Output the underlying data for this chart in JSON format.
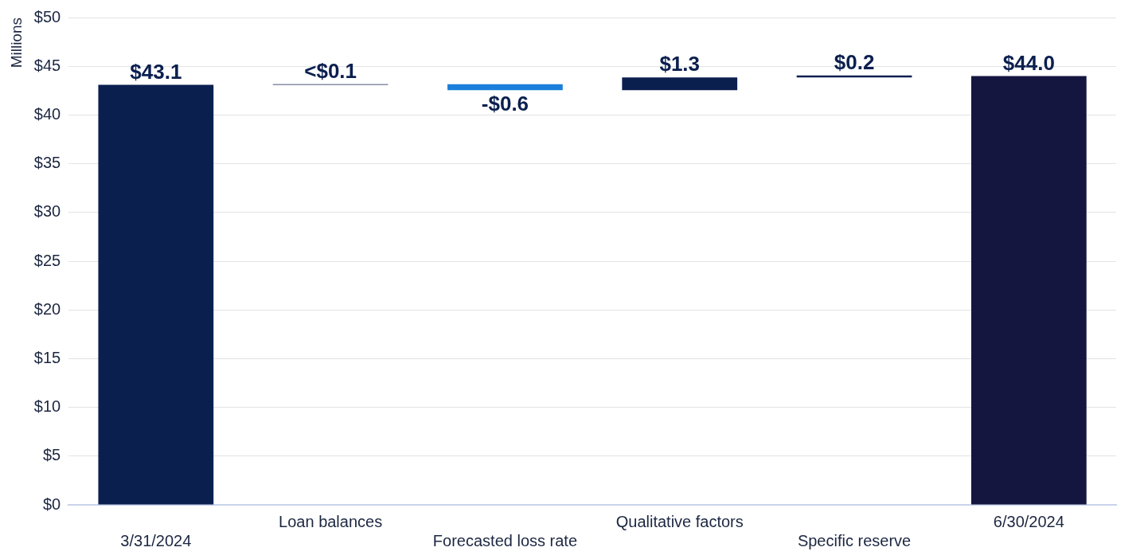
{
  "chart_data": {
    "type": "bar",
    "ylabel": "Millions",
    "categories": [
      "3/31/2024",
      "Loan balances",
      "Forecasted loss rate",
      "Qualitative factors",
      "Specific reserve",
      "6/30/2024"
    ],
    "base": [
      0,
      43.1,
      43.15,
      42.55,
      43.85,
      0
    ],
    "values": [
      43.1,
      0.05,
      -0.6,
      1.3,
      0.2,
      44.0
    ],
    "colors": [
      "#0b1f4f",
      "#0b1f4f",
      "#1a7fdb",
      "#0b1f4f",
      "#0b1f4f",
      "#14163f"
    ],
    "value_labels": [
      "$43.1",
      "<$0.1",
      "-$0.6",
      "$1.3",
      "$0.2",
      "$44.0"
    ],
    "ylim": [
      0,
      50
    ],
    "yticks": [
      {
        "value": 0,
        "label": "$0"
      },
      {
        "value": 5,
        "label": "$5"
      },
      {
        "value": 10,
        "label": "$10"
      },
      {
        "value": 15,
        "label": "$15"
      },
      {
        "value": 20,
        "label": "$20"
      },
      {
        "value": 25,
        "label": "$25"
      },
      {
        "value": 30,
        "label": "$30"
      },
      {
        "value": 35,
        "label": "$35"
      },
      {
        "value": 40,
        "label": "$40"
      },
      {
        "value": 45,
        "label": "$45"
      },
      {
        "value": 50,
        "label": "$50"
      }
    ],
    "grid": "y",
    "legend": false
  }
}
